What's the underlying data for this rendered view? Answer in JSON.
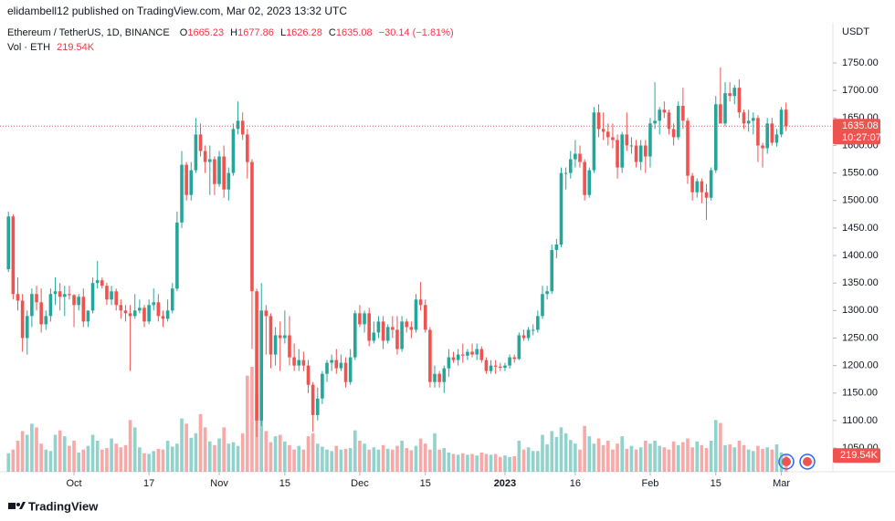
{
  "chart_data": {
    "type": "candlestick",
    "source": "elidambell12 published on TradingView.com, Mar 02, 2023 13:32 UTC",
    "title": "Ethereum / TetherUS, 1D, BINANCE",
    "ohlc_labels": [
      "O",
      "H",
      "L",
      "C"
    ],
    "change": "−30.14 (−1.81%)",
    "volume_title": "Vol · ETH",
    "volume_label": "219.54K",
    "y_label": "USDT",
    "timer": "10:27:07",
    "brand": "TradingView",
    "up_color": "#26a69a",
    "down_color": "#ef5350",
    "grid": false,
    "ylim": [
      1007,
      1823
    ],
    "yticks": [
      {
        "value": 1050,
        "label": "1050.00"
      },
      {
        "value": 1100,
        "label": "1100.00"
      },
      {
        "value": 1150,
        "label": "1150.00"
      },
      {
        "value": 1200,
        "label": "1200.00"
      },
      {
        "value": 1250,
        "label": "1250.00"
      },
      {
        "value": 1300,
        "label": "1300.00"
      },
      {
        "value": 1350,
        "label": "1350.00"
      },
      {
        "value": 1400,
        "label": "1400.00"
      },
      {
        "value": 1450,
        "label": "1450.00"
      },
      {
        "value": 1500,
        "label": "1500.00"
      },
      {
        "value": 1550,
        "label": "1550.00"
      },
      {
        "value": 1600,
        "label": "1600.00"
      },
      {
        "value": 1650,
        "label": "1650.00"
      },
      {
        "value": 1700,
        "label": "1700.00"
      },
      {
        "value": 1750,
        "label": "1750.00"
      }
    ],
    "xlim": [
      -1.8,
      176
    ],
    "xticks": [
      {
        "value": 14,
        "label": "Oct"
      },
      {
        "value": 30,
        "label": "17"
      },
      {
        "value": 45,
        "label": "Nov"
      },
      {
        "value": 59,
        "label": "15"
      },
      {
        "value": 75,
        "label": "Dec"
      },
      {
        "value": 89,
        "label": "15"
      },
      {
        "value": 106,
        "label": "2023"
      },
      {
        "value": 121,
        "label": "16"
      },
      {
        "value": 137,
        "label": "Feb"
      },
      {
        "value": 151,
        "label": "15"
      },
      {
        "value": 165,
        "label": "Mar"
      }
    ],
    "ohlc": [
      [
        1375,
        1480,
        1370,
        1471
      ],
      [
        1471,
        1475,
        1320,
        1330
      ],
      [
        1330,
        1360,
        1300,
        1318
      ],
      [
        1318,
        1330,
        1225,
        1250
      ],
      [
        1250,
        1300,
        1220,
        1290
      ],
      [
        1290,
        1340,
        1270,
        1330
      ],
      [
        1330,
        1345,
        1300,
        1315
      ],
      [
        1315,
        1340,
        1260,
        1275
      ],
      [
        1275,
        1300,
        1265,
        1290
      ],
      [
        1290,
        1340,
        1280,
        1330
      ],
      [
        1330,
        1360,
        1310,
        1335
      ],
      [
        1335,
        1350,
        1300,
        1325
      ],
      [
        1325,
        1345,
        1290,
        1330
      ],
      [
        1330,
        1345,
        1320,
        1328
      ],
      [
        1328,
        1330,
        1270,
        1310
      ],
      [
        1310,
        1330,
        1300,
        1325
      ],
      [
        1325,
        1340,
        1270,
        1280
      ],
      [
        1280,
        1300,
        1270,
        1300
      ],
      [
        1300,
        1360,
        1295,
        1350
      ],
      [
        1350,
        1390,
        1340,
        1355
      ],
      [
        1355,
        1360,
        1340,
        1345
      ],
      [
        1345,
        1350,
        1310,
        1320
      ],
      [
        1320,
        1345,
        1310,
        1335
      ],
      [
        1335,
        1340,
        1300,
        1310
      ],
      [
        1310,
        1320,
        1285,
        1300
      ],
      [
        1300,
        1310,
        1280,
        1295
      ],
      [
        1295,
        1310,
        1190,
        1290
      ],
      [
        1290,
        1330,
        1285,
        1300
      ],
      [
        1300,
        1320,
        1295,
        1305
      ],
      [
        1305,
        1310,
        1270,
        1280
      ],
      [
        1280,
        1320,
        1275,
        1310
      ],
      [
        1310,
        1340,
        1300,
        1315
      ],
      [
        1315,
        1330,
        1280,
        1290
      ],
      [
        1290,
        1300,
        1270,
        1285
      ],
      [
        1285,
        1320,
        1280,
        1300
      ],
      [
        1300,
        1350,
        1295,
        1340
      ],
      [
        1340,
        1480,
        1335,
        1460
      ],
      [
        1460,
        1590,
        1450,
        1565
      ],
      [
        1565,
        1570,
        1500,
        1510
      ],
      [
        1510,
        1570,
        1500,
        1555
      ],
      [
        1555,
        1650,
        1550,
        1620
      ],
      [
        1620,
        1640,
        1580,
        1590
      ],
      [
        1590,
        1600,
        1550,
        1570
      ],
      [
        1570,
        1600,
        1510,
        1575
      ],
      [
        1575,
        1580,
        1510,
        1530
      ],
      [
        1530,
        1590,
        1525,
        1580
      ],
      [
        1580,
        1600,
        1505,
        1520
      ],
      [
        1520,
        1560,
        1500,
        1550
      ],
      [
        1550,
        1640,
        1545,
        1630
      ],
      [
        1630,
        1680,
        1620,
        1645
      ],
      [
        1645,
        1660,
        1610,
        1620
      ],
      [
        1620,
        1630,
        1540,
        1570
      ],
      [
        1570,
        1575,
        1230,
        1335
      ],
      [
        1335,
        1340,
        1070,
        1100
      ],
      [
        1100,
        1350,
        1090,
        1300
      ],
      [
        1300,
        1310,
        1220,
        1290
      ],
      [
        1290,
        1295,
        1195,
        1220
      ],
      [
        1220,
        1270,
        1200,
        1255
      ],
      [
        1255,
        1280,
        1190,
        1250
      ],
      [
        1250,
        1300,
        1240,
        1255
      ],
      [
        1255,
        1290,
        1200,
        1215
      ],
      [
        1215,
        1240,
        1190,
        1200
      ],
      [
        1200,
        1230,
        1190,
        1210
      ],
      [
        1210,
        1225,
        1190,
        1200
      ],
      [
        1200,
        1210,
        1150,
        1165
      ],
      [
        1165,
        1170,
        1080,
        1110
      ],
      [
        1110,
        1160,
        1100,
        1140
      ],
      [
        1140,
        1190,
        1130,
        1185
      ],
      [
        1185,
        1210,
        1170,
        1205
      ],
      [
        1205,
        1220,
        1190,
        1210
      ],
      [
        1210,
        1230,
        1185,
        1195
      ],
      [
        1195,
        1220,
        1190,
        1205
      ],
      [
        1205,
        1215,
        1160,
        1170
      ],
      [
        1170,
        1230,
        1165,
        1215
      ],
      [
        1215,
        1300,
        1210,
        1295
      ],
      [
        1295,
        1310,
        1270,
        1275
      ],
      [
        1275,
        1300,
        1260,
        1295
      ],
      [
        1295,
        1305,
        1235,
        1245
      ],
      [
        1245,
        1280,
        1240,
        1260
      ],
      [
        1260,
        1290,
        1250,
        1280
      ],
      [
        1280,
        1290,
        1230,
        1245
      ],
      [
        1245,
        1275,
        1240,
        1270
      ],
      [
        1270,
        1290,
        1250,
        1265
      ],
      [
        1265,
        1290,
        1220,
        1230
      ],
      [
        1230,
        1290,
        1225,
        1280
      ],
      [
        1280,
        1285,
        1260,
        1270
      ],
      [
        1270,
        1280,
        1250,
        1265
      ],
      [
        1265,
        1330,
        1260,
        1320
      ],
      [
        1320,
        1352,
        1300,
        1310
      ],
      [
        1310,
        1320,
        1260,
        1265
      ],
      [
        1265,
        1270,
        1160,
        1170
      ],
      [
        1170,
        1200,
        1160,
        1185
      ],
      [
        1185,
        1190,
        1160,
        1170
      ],
      [
        1170,
        1200,
        1150,
        1195
      ],
      [
        1195,
        1230,
        1180,
        1215
      ],
      [
        1215,
        1225,
        1205,
        1210
      ],
      [
        1210,
        1230,
        1200,
        1220
      ],
      [
        1220,
        1240,
        1205,
        1218
      ],
      [
        1218,
        1230,
        1210,
        1225
      ],
      [
        1225,
        1240,
        1215,
        1220
      ],
      [
        1220,
        1240,
        1210,
        1230
      ],
      [
        1230,
        1235,
        1205,
        1210
      ],
      [
        1210,
        1215,
        1185,
        1190
      ],
      [
        1190,
        1210,
        1185,
        1200
      ],
      [
        1200,
        1210,
        1185,
        1198
      ],
      [
        1198,
        1205,
        1190,
        1196
      ],
      [
        1196,
        1205,
        1190,
        1200
      ],
      [
        1200,
        1220,
        1195,
        1215
      ],
      [
        1215,
        1220,
        1205,
        1212
      ],
      [
        1212,
        1260,
        1210,
        1255
      ],
      [
        1255,
        1265,
        1245,
        1250
      ],
      [
        1250,
        1270,
        1245,
        1265
      ],
      [
        1265,
        1275,
        1255,
        1265
      ],
      [
        1265,
        1300,
        1260,
        1290
      ],
      [
        1290,
        1345,
        1285,
        1330
      ],
      [
        1330,
        1345,
        1320,
        1335
      ],
      [
        1335,
        1420,
        1330,
        1410
      ],
      [
        1410,
        1430,
        1395,
        1420
      ],
      [
        1420,
        1560,
        1415,
        1550
      ],
      [
        1550,
        1560,
        1520,
        1550
      ],
      [
        1550,
        1590,
        1540,
        1575
      ],
      [
        1575,
        1610,
        1560,
        1585
      ],
      [
        1585,
        1600,
        1560,
        1570
      ],
      [
        1570,
        1575,
        1500,
        1510
      ],
      [
        1510,
        1560,
        1505,
        1555
      ],
      [
        1555,
        1670,
        1550,
        1660
      ],
      [
        1660,
        1675,
        1615,
        1630
      ],
      [
        1630,
        1660,
        1610,
        1625
      ],
      [
        1625,
        1640,
        1600,
        1615
      ],
      [
        1615,
        1640,
        1595,
        1610
      ],
      [
        1610,
        1620,
        1540,
        1560
      ],
      [
        1560,
        1625,
        1550,
        1620
      ],
      [
        1620,
        1660,
        1590,
        1600
      ],
      [
        1600,
        1615,
        1585,
        1600
      ],
      [
        1600,
        1610,
        1560,
        1570
      ],
      [
        1570,
        1610,
        1555,
        1600
      ],
      [
        1600,
        1610,
        1550,
        1580
      ],
      [
        1580,
        1650,
        1560,
        1640
      ],
      [
        1640,
        1715,
        1630,
        1645
      ],
      [
        1645,
        1670,
        1620,
        1665
      ],
      [
        1665,
        1680,
        1650,
        1660
      ],
      [
        1660,
        1665,
        1620,
        1630
      ],
      [
        1630,
        1640,
        1600,
        1615
      ],
      [
        1615,
        1680,
        1610,
        1672
      ],
      [
        1672,
        1705,
        1630,
        1645
      ],
      [
        1645,
        1650,
        1530,
        1545
      ],
      [
        1545,
        1550,
        1500,
        1515
      ],
      [
        1515,
        1540,
        1505,
        1535
      ],
      [
        1535,
        1540,
        1495,
        1515
      ],
      [
        1515,
        1530,
        1465,
        1505
      ],
      [
        1505,
        1560,
        1500,
        1555
      ],
      [
        1555,
        1690,
        1550,
        1675
      ],
      [
        1675,
        1742,
        1640,
        1640
      ],
      [
        1640,
        1715,
        1635,
        1695
      ],
      [
        1695,
        1715,
        1680,
        1690
      ],
      [
        1690,
        1710,
        1675,
        1705
      ],
      [
        1705,
        1720,
        1650,
        1660
      ],
      [
        1660,
        1665,
        1630,
        1640
      ],
      [
        1640,
        1665,
        1625,
        1645
      ],
      [
        1645,
        1660,
        1620,
        1650
      ],
      [
        1650,
        1655,
        1570,
        1600
      ],
      [
        1600,
        1605,
        1560,
        1595
      ],
      [
        1595,
        1650,
        1585,
        1640
      ],
      [
        1640,
        1650,
        1600,
        1605
      ],
      [
        1605,
        1630,
        1598,
        1620
      ],
      [
        1620,
        1670,
        1615,
        1665
      ],
      [
        1665.23,
        1677.86,
        1626.28,
        1635.08
      ]
    ],
    "volume": [
      250,
      300,
      420,
      550,
      500,
      650,
      600,
      380,
      300,
      280,
      500,
      560,
      480,
      350,
      420,
      260,
      300,
      350,
      500,
      420,
      300,
      320,
      450,
      380,
      330,
      360,
      700,
      600,
      330,
      250,
      240,
      280,
      310,
      300,
      420,
      340,
      380,
      720,
      650,
      460,
      520,
      780,
      600,
      410,
      360,
      450,
      600,
      380,
      400,
      350,
      520,
      1300,
      1420,
      1050,
      700,
      550,
      400,
      480,
      500,
      410,
      360,
      300,
      350,
      300,
      480,
      520,
      380,
      340,
      300,
      280,
      350,
      300,
      310,
      320,
      560,
      420,
      380,
      300,
      330,
      300,
      360,
      310,
      300,
      350,
      420,
      320,
      290,
      350,
      450,
      380,
      300,
      520,
      300,
      320,
      260,
      240,
      230,
      250,
      230,
      240,
      220,
      260,
      240,
      230,
      240,
      200,
      220,
      200,
      210,
      420,
      300,
      330,
      280,
      280,
      500,
      370,
      550,
      470,
      600,
      520,
      430,
      380,
      300,
      620,
      480,
      380,
      450,
      360,
      420,
      300,
      380,
      480,
      310,
      350,
      300,
      330,
      420,
      380,
      420,
      350,
      330,
      300,
      410,
      360,
      400,
      450,
      330,
      410,
      360,
      320,
      420,
      700,
      660,
      360,
      370,
      330,
      420,
      360,
      300,
      280,
      350,
      310,
      330,
      300,
      370,
      260,
      219.54
    ]
  }
}
